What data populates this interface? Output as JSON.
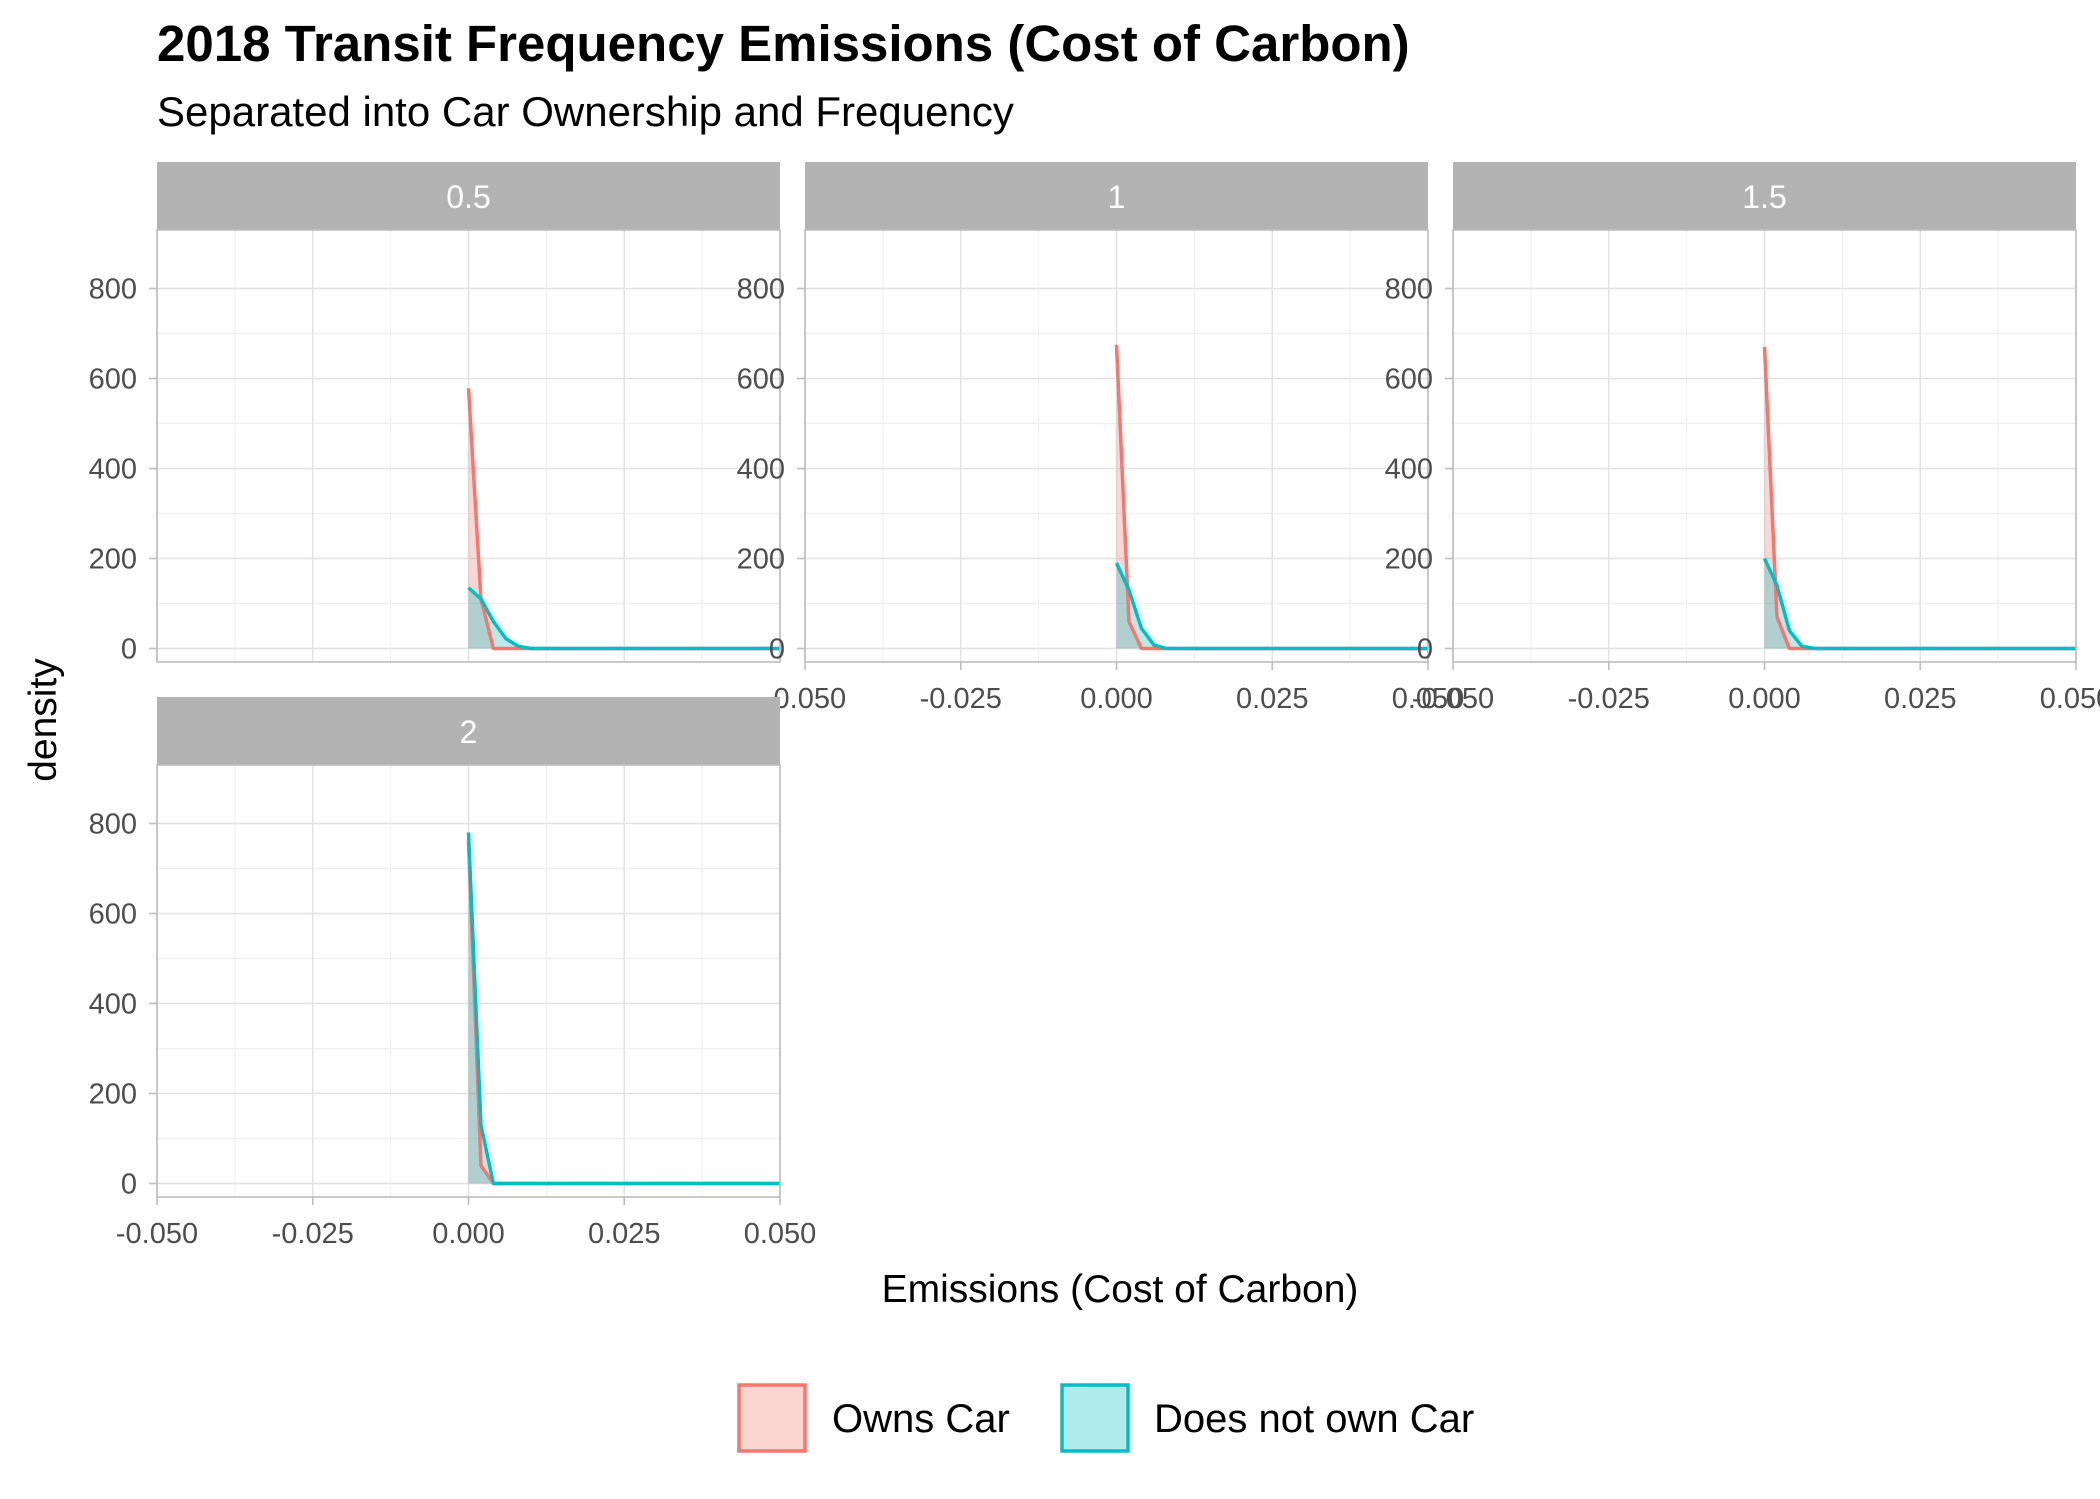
{
  "chart_data": {
    "type": "area",
    "title": "2018 Transit Frequency Emissions (Cost of Carbon)",
    "subtitle": "Separated into Car Ownership and Frequency",
    "xlabel": "Emissions (Cost of Carbon)",
    "ylabel": "density",
    "xlim": [
      -0.05,
      0.05
    ],
    "ylim": [
      -30,
      930
    ],
    "x_ticks": [
      -0.05,
      -0.025,
      0.0,
      0.025,
      0.05
    ],
    "x_tick_labels": [
      "-0.050",
      "-0.025",
      "0.000",
      "0.025",
      "0.050"
    ],
    "y_ticks": [
      0,
      200,
      400,
      600,
      800
    ],
    "y_tick_labels": [
      "0",
      "200",
      "400",
      "600",
      "800"
    ],
    "grid": true,
    "legend_position": "bottom",
    "series_styles": [
      {
        "name": "Owns Car",
        "color": "#F8766D",
        "fill": "#FCD5D2"
      },
      {
        "name": "Does not own Car",
        "color": "#00BFC4",
        "fill": "#B1ECED"
      }
    ],
    "panels": [
      {
        "label": "0.5",
        "series": [
          {
            "name": "Owns Car",
            "x": [
              0.0,
              0.002,
              0.004,
              0.006,
              0.008,
              0.01,
              0.05
            ],
            "y": [
              578,
              110,
              0,
              0,
              0,
              0,
              0
            ]
          },
          {
            "name": "Does not own Car",
            "x": [
              0.0,
              0.002,
              0.004,
              0.006,
              0.008,
              0.01,
              0.05
            ],
            "y": [
              135,
              110,
              60,
              22,
              5,
              0,
              0
            ]
          }
        ]
      },
      {
        "label": "1",
        "series": [
          {
            "name": "Owns Car",
            "x": [
              0.0,
              0.002,
              0.004,
              0.006,
              0.008,
              0.05
            ],
            "y": [
              675,
              60,
              0,
              0,
              0,
              0
            ]
          },
          {
            "name": "Does not own Car",
            "x": [
              0.0,
              0.002,
              0.004,
              0.006,
              0.008,
              0.05
            ],
            "y": [
              190,
              130,
              45,
              8,
              0,
              0
            ]
          }
        ]
      },
      {
        "label": "1.5",
        "series": [
          {
            "name": "Owns Car",
            "x": [
              0.0,
              0.002,
              0.004,
              0.006,
              0.008,
              0.05
            ],
            "y": [
              670,
              70,
              0,
              0,
              0,
              0
            ]
          },
          {
            "name": "Does not own Car",
            "x": [
              0.0,
              0.002,
              0.004,
              0.006,
              0.008,
              0.05
            ],
            "y": [
              200,
              140,
              40,
              5,
              0,
              0
            ]
          }
        ]
      },
      {
        "label": "2",
        "series": [
          {
            "name": "Owns Car",
            "x": [
              0.0,
              0.002,
              0.004,
              0.05
            ],
            "y": [
              760,
              40,
              0,
              0
            ]
          },
          {
            "name": "Does not own Car",
            "x": [
              0.0,
              0.002,
              0.004,
              0.05
            ],
            "y": [
              780,
              130,
              0,
              0
            ]
          }
        ]
      }
    ]
  }
}
